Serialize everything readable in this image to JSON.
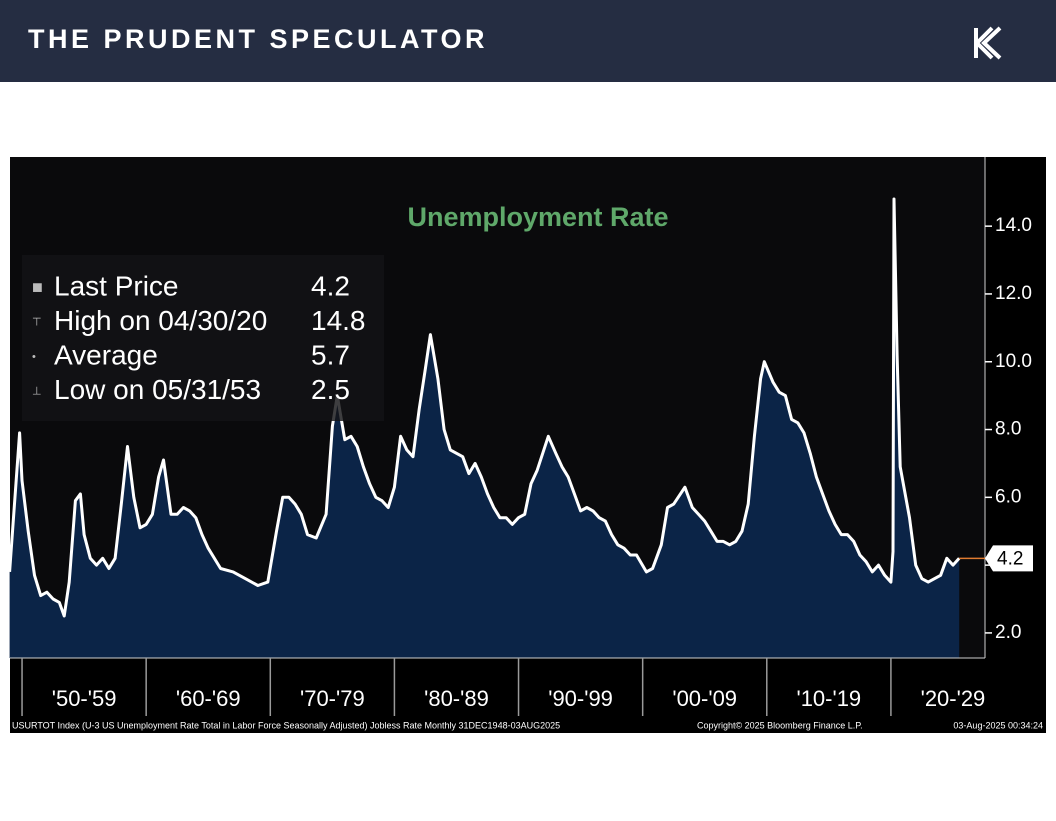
{
  "header": {
    "title": "THE PRUDENT SPECULATOR"
  },
  "chart_data": {
    "type": "area",
    "title": "Unemployment Rate",
    "x": [
      1949.0,
      1949.8,
      1950.0,
      1950.5,
      1951.0,
      1951.5,
      1952.0,
      1952.5,
      1953.0,
      1953.4,
      1953.8,
      1954.3,
      1954.7,
      1955.0,
      1955.5,
      1956.0,
      1956.5,
      1957.0,
      1957.5,
      1958.0,
      1958.5,
      1959.0,
      1959.5,
      1960.0,
      1960.5,
      1961.0,
      1961.4,
      1962.0,
      1962.5,
      1963.0,
      1963.5,
      1964.0,
      1964.5,
      1965.0,
      1966.0,
      1967.0,
      1968.0,
      1969.0,
      1969.8,
      1970.5,
      1971.0,
      1971.5,
      1972.0,
      1972.5,
      1973.0,
      1973.7,
      1974.5,
      1975.0,
      1975.4,
      1976.0,
      1976.5,
      1977.0,
      1977.5,
      1978.0,
      1978.5,
      1979.0,
      1979.5,
      1980.0,
      1980.5,
      1981.0,
      1981.5,
      1982.0,
      1982.5,
      1982.9,
      1983.5,
      1984.0,
      1984.5,
      1985.0,
      1985.5,
      1986.0,
      1986.5,
      1987.0,
      1987.5,
      1988.0,
      1988.5,
      1989.0,
      1989.5,
      1990.0,
      1990.5,
      1991.0,
      1991.5,
      1992.4,
      1993.0,
      1993.5,
      1994.0,
      1994.5,
      1995.0,
      1995.5,
      1996.0,
      1996.5,
      1997.0,
      1997.5,
      1998.0,
      1998.5,
      1999.0,
      1999.5,
      2000.3,
      2000.8,
      2001.5,
      2002.0,
      2002.5,
      2003.4,
      2004.0,
      2004.5,
      2005.0,
      2005.5,
      2006.0,
      2006.5,
      2007.0,
      2007.5,
      2008.0,
      2008.5,
      2009.0,
      2009.5,
      2009.8,
      2010.5,
      2011.0,
      2011.5,
      2012.0,
      2012.5,
      2013.0,
      2013.5,
      2014.0,
      2014.5,
      2015.0,
      2015.5,
      2016.0,
      2016.5,
      2017.0,
      2017.5,
      2018.0,
      2018.5,
      2019.0,
      2019.5,
      2020.0,
      2020.17,
      2020.25,
      2020.5,
      2020.75,
      2021.0,
      2021.5,
      2022.0,
      2022.5,
      2023.0,
      2023.5,
      2024.0,
      2024.5,
      2025.0,
      2025.5
    ],
    "values": [
      3.8,
      7.9,
      6.5,
      5.0,
      3.7,
      3.1,
      3.2,
      3.0,
      2.9,
      2.5,
      3.5,
      5.9,
      6.1,
      4.9,
      4.2,
      4.0,
      4.2,
      3.9,
      4.2,
      5.8,
      7.5,
      6.0,
      5.1,
      5.2,
      5.5,
      6.6,
      7.1,
      5.5,
      5.5,
      5.7,
      5.6,
      5.4,
      4.9,
      4.5,
      3.9,
      3.8,
      3.6,
      3.4,
      3.5,
      5.0,
      6.0,
      6.0,
      5.8,
      5.5,
      4.9,
      4.8,
      5.5,
      8.1,
      9.0,
      7.7,
      7.8,
      7.5,
      6.9,
      6.4,
      6.0,
      5.9,
      5.7,
      6.3,
      7.8,
      7.4,
      7.2,
      8.6,
      9.8,
      10.8,
      9.5,
      8.0,
      7.4,
      7.3,
      7.2,
      6.7,
      7.0,
      6.6,
      6.1,
      5.7,
      5.4,
      5.4,
      5.2,
      5.4,
      5.5,
      6.4,
      6.8,
      7.8,
      7.3,
      6.9,
      6.6,
      6.1,
      5.6,
      5.7,
      5.6,
      5.4,
      5.3,
      4.9,
      4.6,
      4.5,
      4.3,
      4.3,
      3.8,
      3.9,
      4.6,
      5.7,
      5.8,
      6.3,
      5.7,
      5.5,
      5.3,
      5.0,
      4.7,
      4.7,
      4.6,
      4.7,
      5.0,
      5.8,
      7.8,
      9.5,
      10.0,
      9.4,
      9.1,
      9.0,
      8.3,
      8.2,
      7.9,
      7.3,
      6.6,
      6.1,
      5.6,
      5.2,
      4.9,
      4.9,
      4.7,
      4.3,
      4.1,
      3.8,
      4.0,
      3.7,
      3.5,
      4.4,
      14.8,
      10.2,
      6.9,
      6.4,
      5.4,
      4.0,
      3.6,
      3.5,
      3.6,
      3.7,
      4.2,
      4.0,
      4.2
    ],
    "color": "#ffffff",
    "fill": "#0b2447",
    "xlim": [
      1949.03,
      2027.58
    ],
    "x_separators": [
      1950,
      1960,
      1970,
      1980,
      1990,
      2000,
      2010,
      2020
    ],
    "xticks": [
      {
        "value": 1955,
        "label": "'50-'59"
      },
      {
        "value": 1965,
        "label": "'60-'69"
      },
      {
        "value": 1975,
        "label": "'70-'79"
      },
      {
        "value": 1985,
        "label": "'80-'89"
      },
      {
        "value": 1995,
        "label": "'90-'99"
      },
      {
        "value": 2005,
        "label": "'00-'09"
      },
      {
        "value": 2015,
        "label": "'10-'19"
      },
      {
        "value": 2025,
        "label": "'20-'29"
      }
    ],
    "ylim": [
      1.26,
      16.04
    ],
    "yticks": [
      {
        "value": 2,
        "label": "2.0"
      },
      {
        "value": 4,
        "label": "4.0"
      },
      {
        "value": 6,
        "label": "6.0"
      },
      {
        "value": 8,
        "label": "8.0"
      },
      {
        "value": 10,
        "label": "10.0"
      },
      {
        "value": 12,
        "label": "12.0"
      },
      {
        "value": 14,
        "label": "14.0"
      }
    ],
    "grid": false,
    "legend": [
      {
        "label": "Last Price",
        "value": 4.2
      },
      {
        "label": "High on 04/30/20",
        "value": 14.8
      },
      {
        "label": "Average",
        "value": 5.7
      },
      {
        "label": "Low on 05/31/53",
        "value": 2.5
      }
    ],
    "footer": {
      "source": "USURTOT Index (U-3 US Unemployment Rate Total in Labor Force Seasonally Adjusted) Jobless Rate  Monthly 31DEC1948-03AUG2025",
      "copyright": "Copyright© 2025 Bloomberg Finance L.P.",
      "timestamp": "03-Aug-2025 00:34:24"
    }
  }
}
